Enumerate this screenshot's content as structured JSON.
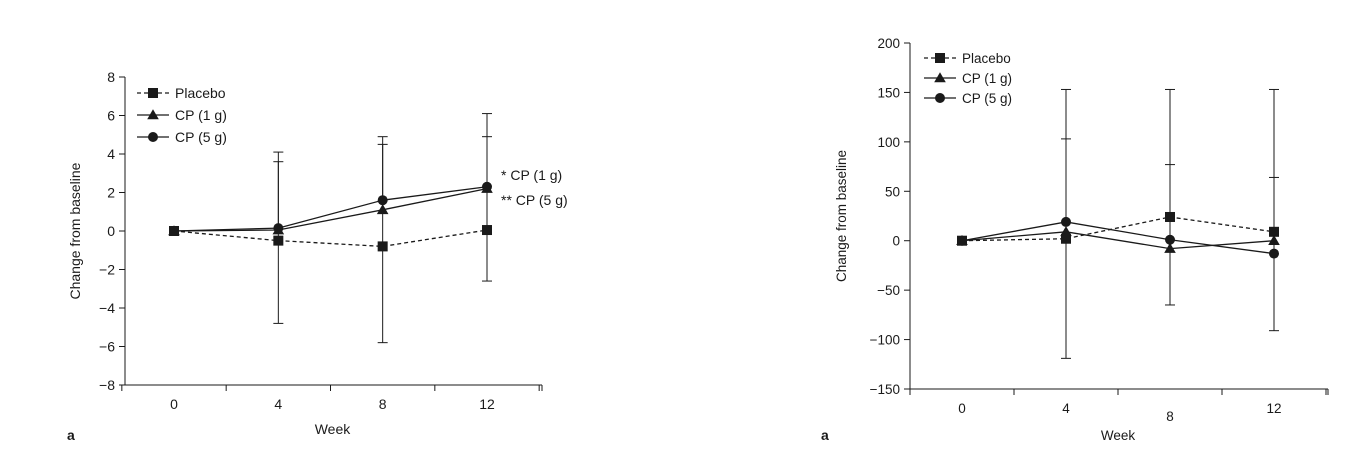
{
  "chart_data": [
    {
      "type": "line",
      "panel_label": "a",
      "xlabel": "Week",
      "ylabel": "Change from baseline",
      "x": [
        0,
        4,
        8,
        12
      ],
      "xticks": [
        0,
        4,
        8,
        12
      ],
      "ylim": [
        -8,
        8
      ],
      "yticks": [
        -8,
        -6,
        -4,
        -2,
        0,
        2,
        4,
        6,
        8
      ],
      "grid": false,
      "legend_position": "top-left",
      "series": [
        {
          "name": "Placebo",
          "marker": "square",
          "dash": true,
          "values": [
            0,
            -0.5,
            -0.8,
            0.05
          ],
          "err_high": [
            null,
            3.6,
            4.5,
            4.9
          ],
          "err_low": [
            null,
            -4.8,
            -5.8,
            -2.6
          ]
        },
        {
          "name": "CP (1 g)",
          "marker": "triangle",
          "dash": false,
          "values": [
            0,
            0.05,
            1.1,
            2.2
          ],
          "err_high": [
            null,
            4.1,
            4.9,
            6.1
          ],
          "err_low": [
            null,
            null,
            null,
            null
          ]
        },
        {
          "name": "CP (5 g)",
          "marker": "circle",
          "dash": false,
          "values": [
            0,
            0.15,
            1.6,
            2.3
          ],
          "err_high": [
            null,
            null,
            null,
            null
          ],
          "err_low": [
            null,
            null,
            null,
            null
          ]
        }
      ],
      "annotations": [
        {
          "text": "* CP (1 g)",
          "x": 12,
          "y": 2.9
        },
        {
          "text": "** CP (5 g)",
          "x": 12,
          "y": 1.6
        }
      ]
    },
    {
      "type": "line",
      "panel_label": "a",
      "xlabel": "Week",
      "ylabel": "Change from baseline",
      "x": [
        0,
        4,
        8,
        12
      ],
      "xticks": [
        0,
        4,
        8,
        12
      ],
      "ylim": [
        -150,
        200
      ],
      "yticks": [
        -150,
        -100,
        -50,
        0,
        50,
        100,
        150,
        200
      ],
      "grid": false,
      "legend_position": "top-left",
      "series": [
        {
          "name": "Placebo",
          "marker": "square",
          "dash": true,
          "values": [
            0,
            2,
            24,
            9
          ],
          "err_high": [
            null,
            103,
            77,
            64
          ],
          "err_low": [
            null,
            -119,
            -65,
            -91
          ]
        },
        {
          "name": "CP (1 g)",
          "marker": "triangle",
          "dash": false,
          "values": [
            0,
            9,
            -8,
            0
          ],
          "err_high": [
            null,
            153,
            153,
            153
          ],
          "err_low": [
            null,
            null,
            null,
            null
          ]
        },
        {
          "name": "CP (5 g)",
          "marker": "circle",
          "dash": false,
          "values": [
            0,
            19,
            1,
            -13
          ],
          "err_high": [
            null,
            null,
            null,
            null
          ],
          "err_low": [
            null,
            null,
            null,
            null
          ]
        }
      ],
      "annotations": []
    }
  ]
}
